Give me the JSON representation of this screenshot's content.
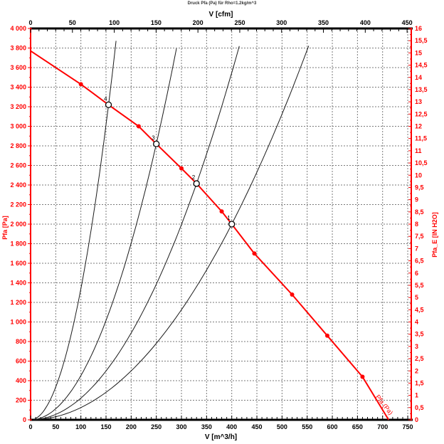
{
  "chart_data": {
    "type": "line",
    "title": "Druck Pfa (Pa) für Rho=1.2kg/m^3",
    "colors": {
      "accent": "#ff0000",
      "axis_black": "#000000",
      "grid": "#7a7a7a"
    },
    "grid": {
      "v_step": 50,
      "p_step": 200,
      "style": "dashed"
    },
    "axes": {
      "top": {
        "label": "V [cfm]",
        "min": 0,
        "max": 450,
        "display_max": 455,
        "tick_step": 50,
        "minor_step": 10,
        "tick_labels": [
          "0",
          "50",
          "100",
          "150",
          "200",
          "250",
          "300",
          "350",
          "400",
          "450"
        ],
        "color": "#000000"
      },
      "bottom": {
        "label": "V [m^3/h]",
        "min": 0,
        "max": 750,
        "display_max": 757,
        "tick_step": 50,
        "minor_step": 10,
        "tick_labels": [
          "0",
          "50",
          "100",
          "150",
          "200",
          "250",
          "300",
          "350",
          "400",
          "450",
          "500",
          "550",
          "600",
          "650",
          "700",
          "750"
        ],
        "color": "#000000"
      },
      "left": {
        "label": "Pfa [Pa]",
        "min": 0,
        "max": 4000,
        "tick_step": 200,
        "minor_step": 100,
        "tick_labels": [
          "0",
          "200",
          "400",
          "600",
          "800",
          "1 000",
          "1 200",
          "1 400",
          "1 600",
          "1 800",
          "2 000",
          "2 200",
          "2 400",
          "2 600",
          "2 800",
          "3 000",
          "3 200",
          "3 400",
          "3 600",
          "3 800",
          "4 000"
        ],
        "color": "#ff0000"
      },
      "right": {
        "label": "Pfa_E [IN H2O]",
        "min": 0,
        "max": 16,
        "tick_step": 0.5,
        "minor_step": 0.25,
        "tick_labels": [
          "0",
          "0,5",
          "1",
          "1,5",
          "2",
          "2,5",
          "3",
          "3,5",
          "4",
          "4,5",
          "5",
          "5,5",
          "6",
          "6,5",
          "7",
          "7,5",
          "8",
          "8,5",
          "9",
          "9,5",
          "10",
          "10,5",
          "11",
          "11,5",
          "12",
          "12,5",
          "13",
          "13,5",
          "14",
          "14,5",
          "15",
          "15,5",
          "16"
        ],
        "color": "#ff0000"
      }
    },
    "fan_curve": {
      "name": "Pfa (Pa)",
      "color": "#ff0000",
      "points": [
        [
          0,
          3770
        ],
        [
          100,
          3430
        ],
        [
          155,
          3220
        ],
        [
          215,
          3000
        ],
        [
          250,
          2820
        ],
        [
          300,
          2570
        ],
        [
          330,
          2415
        ],
        [
          380,
          2130
        ],
        [
          400,
          2000
        ],
        [
          445,
          1700
        ],
        [
          520,
          1280
        ],
        [
          590,
          860
        ],
        [
          660,
          440
        ],
        [
          712,
          0
        ]
      ],
      "dots": [
        [
          100,
          3430
        ],
        [
          215,
          3000
        ],
        [
          300,
          2570
        ],
        [
          380,
          2130
        ],
        [
          445,
          1700
        ],
        [
          520,
          1280
        ],
        [
          590,
          860
        ],
        [
          660,
          440
        ]
      ],
      "curve_label": {
        "text": "Pfa (Pa)",
        "v": 700,
        "p": 140,
        "angle": 52
      }
    },
    "system_curves": [
      {
        "op_label": "4",
        "v_op": 155,
        "p_op": 3220,
        "v_end": 170
      },
      {
        "op_label": "3",
        "v_op": 250,
        "p_op": 2820,
        "v_end": 290
      },
      {
        "op_label": "2",
        "v_op": 330,
        "p_op": 2415,
        "v_end": 415
      },
      {
        "op_label": "1",
        "v_op": 400,
        "p_op": 2000,
        "v_end": 553
      }
    ]
  }
}
